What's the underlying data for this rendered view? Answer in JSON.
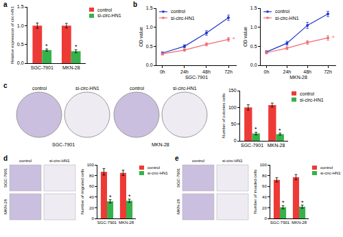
{
  "chart_data": [
    {
      "panel_label": "a",
      "type": "bar",
      "y_label": "Relative expression of circ-HN1",
      "categories": [
        "SGC-7901",
        "MKN-28"
      ],
      "series": [
        {
          "name": "control",
          "color": "#ee3a36",
          "values": [
            1.0,
            1.0
          ],
          "errors": [
            0.07,
            0.06
          ]
        },
        {
          "name": "si-circ-HN1",
          "color": "#35b24a",
          "values": [
            0.35,
            0.32
          ],
          "errors": [
            0.03,
            0.04
          ]
        }
      ],
      "ylim": [
        0,
        1.5
      ],
      "yticks": [
        {
          "value": 0,
          "label": "0.0"
        },
        {
          "value": 0.5,
          "label": "0.5"
        },
        {
          "value": 1,
          "label": "1.0"
        },
        {
          "value": 1.5,
          "label": "1.5"
        }
      ],
      "grid": false,
      "legend": "right",
      "annotations": [
        {
          "text": "*",
          "category": "SGC-7901",
          "series": "si-circ-HN1"
        },
        {
          "text": "*",
          "category": "MKN-28",
          "series": "si-circ-HN1"
        }
      ]
    },
    {
      "panel_label": "b",
      "type": "line",
      "x_label": "SGC-7901",
      "y_label": "OD value",
      "categories": [
        "0h",
        "24h",
        "48h",
        "72h"
      ],
      "series": [
        {
          "name": "control",
          "color": "#1f35c9",
          "marker": "circle",
          "values": [
            0.32,
            0.5,
            0.85,
            1.25
          ],
          "errors": [
            0.03,
            0.04,
            0.06,
            0.07
          ]
        },
        {
          "name": "si-circ-HN1",
          "color": "#f06a73",
          "marker": "circle",
          "values": [
            0.3,
            0.4,
            0.55,
            0.68
          ],
          "errors": [
            0.03,
            0.03,
            0.04,
            0.05
          ]
        }
      ],
      "ylim": [
        0,
        1.5
      ],
      "yticks": [
        {
          "value": 0,
          "label": "0.0"
        },
        {
          "value": 0.5,
          "label": "0.5"
        },
        {
          "value": 1,
          "label": "1.0"
        },
        {
          "value": 1.5,
          "label": "1.5"
        }
      ],
      "grid": false,
      "legend": "top left",
      "annotations": [
        {
          "text": "*",
          "category": "72h",
          "series": "si-circ-HN1"
        }
      ]
    },
    {
      "type": "line",
      "x_label": "MKN-28",
      "y_label": "OD value",
      "categories": [
        "0h",
        "24h",
        "48h",
        "72h"
      ],
      "series": [
        {
          "name": "control",
          "color": "#1f35c9",
          "marker": "circle",
          "values": [
            0.35,
            0.58,
            1.05,
            1.35
          ],
          "errors": [
            0.03,
            0.05,
            0.08,
            0.07
          ]
        },
        {
          "name": "si-circ-HN1",
          "color": "#f06a73",
          "marker": "circle",
          "values": [
            0.33,
            0.45,
            0.6,
            0.72
          ],
          "errors": [
            0.03,
            0.04,
            0.05,
            0.06
          ]
        }
      ],
      "ylim": [
        0,
        1.5
      ],
      "yticks": [
        {
          "value": 0,
          "label": "0.0"
        },
        {
          "value": 0.5,
          "label": "0.5"
        },
        {
          "value": 1,
          "label": "1.0"
        },
        {
          "value": 1.5,
          "label": "1.5"
        }
      ],
      "grid": false,
      "legend": "top left",
      "annotations": [
        {
          "text": "*",
          "category": "72h",
          "series": "si-circ-HN1"
        }
      ]
    },
    {
      "type": "bar",
      "y_label": "Number of colonies cells",
      "categories": [
        "SGC-7901",
        "MKN-28"
      ],
      "series": [
        {
          "name": "control",
          "color": "#ee3a36",
          "values": [
            100,
            107
          ],
          "errors": [
            8,
            6
          ]
        },
        {
          "name": "si-circ-HN1",
          "color": "#35b24a",
          "values": [
            22,
            20
          ],
          "errors": [
            4,
            3
          ]
        }
      ],
      "ylim": [
        0,
        150
      ],
      "yticks": [
        0,
        50,
        100,
        150
      ],
      "grid": false,
      "legend": "right",
      "annotations": [
        {
          "text": "*",
          "category": "SGC-7901",
          "series": "si-circ-HN1"
        },
        {
          "text": "*",
          "category": "MKN-28",
          "series": "si-circ-HN1"
        }
      ]
    },
    {
      "type": "bar",
      "y_label": "Number of migrated cells",
      "categories": [
        "SGC-7901",
        "MKN-28"
      ],
      "series": [
        {
          "name": "control",
          "color": "#ee3a36",
          "values": [
            87,
            85
          ],
          "errors": [
            6,
            5
          ]
        },
        {
          "name": "si-circ-HN1",
          "color": "#35b24a",
          "values": [
            32,
            33
          ],
          "errors": [
            3,
            3
          ]
        }
      ],
      "ylim": [
        0,
        100
      ],
      "yticks": [
        0,
        20,
        40,
        60,
        80,
        100
      ],
      "grid": false,
      "legend": "right",
      "annotations": [
        {
          "text": "*",
          "category": "SGC-7901",
          "series": "si-circ-HN1"
        },
        {
          "text": "*",
          "category": "MKN-28",
          "series": "si-circ-HN1"
        }
      ]
    },
    {
      "type": "bar",
      "y_label": "Number of invaded cells",
      "categories": [
        "SGC-7901",
        "MKN-28"
      ],
      "series": [
        {
          "name": "control",
          "color": "#ee3a36",
          "values": [
            72,
            77
          ],
          "errors": [
            4,
            5
          ]
        },
        {
          "name": "si-circ-HN1",
          "color": "#35b24a",
          "values": [
            21,
            22
          ],
          "errors": [
            3,
            3
          ]
        }
      ],
      "ylim": [
        0,
        100
      ],
      "yticks": [
        0,
        20,
        40,
        60,
        80,
        100
      ],
      "grid": false,
      "legend": "right",
      "annotations": [
        {
          "text": "*",
          "category": "SGC-7901",
          "series": "si-circ-HN1"
        },
        {
          "text": "*",
          "category": "MKN-28",
          "series": "si-circ-HN1"
        }
      ]
    }
  ],
  "image_panels": [
    {
      "panel_label": "c",
      "type": "dishes",
      "column_labels": [
        "control",
        "si-circ-HN1",
        "control",
        "si-circ-HN1"
      ],
      "group_labels": [
        "SGC-7901",
        "MKN-28"
      ]
    },
    {
      "panel_label": "d",
      "type": "fields",
      "column_labels": [
        "control",
        "si-circ-HN1"
      ],
      "row_labels": [
        "SGC-7901",
        "MKN-28"
      ]
    },
    {
      "panel_label": "e",
      "type": "fields",
      "column_labels": [
        "control",
        "si-circ-HN1"
      ],
      "row_labels": [
        "SGC-7901",
        "MKN-28"
      ]
    }
  ]
}
